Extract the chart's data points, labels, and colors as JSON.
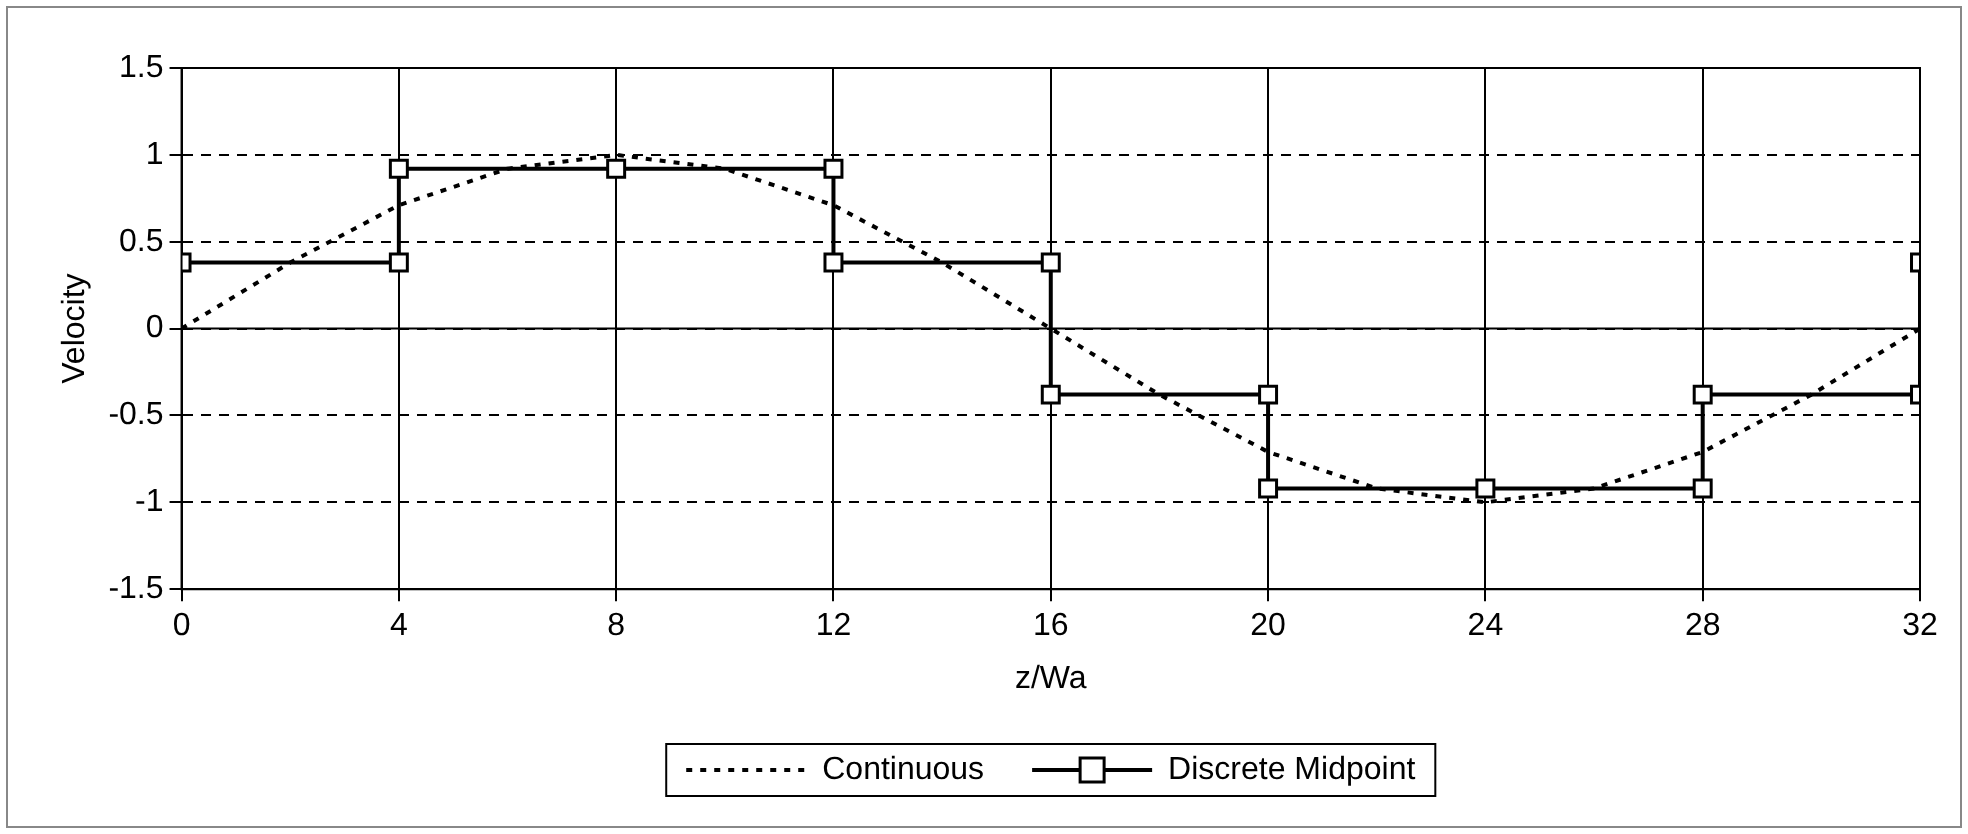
{
  "chart_data": {
    "type": "line",
    "xlabel": "z/Wa",
    "ylabel": "Velocity",
    "xlim": [
      0,
      32
    ],
    "xticks": [
      0,
      4,
      8,
      12,
      16,
      20,
      24,
      28,
      32
    ],
    "ylim": [
      -1.5,
      1.5
    ],
    "yticks": [
      -1.5,
      -1,
      -0.5,
      0,
      0.5,
      1,
      1.5
    ],
    "grid": true,
    "legend": "bottom",
    "series": [
      {
        "name": "Continuous",
        "color": "#000000",
        "marker": "none",
        "line_style": "dotted",
        "x": [
          0,
          2,
          4,
          6,
          8,
          10,
          12,
          14,
          16,
          18,
          20,
          22,
          24,
          26,
          28,
          30,
          32
        ],
        "values": [
          0,
          0.38,
          0.71,
          0.92,
          1,
          0.92,
          0.71,
          0.38,
          0,
          -0.38,
          -0.71,
          -0.92,
          -1,
          -0.92,
          -0.71,
          -0.38,
          0
        ]
      },
      {
        "name": "Discrete Midpoint",
        "color": "#000000",
        "marker": "square",
        "line_style": "solid",
        "x": [
          0,
          4,
          4,
          8,
          12,
          12,
          16,
          16,
          20,
          20,
          24,
          28,
          28,
          32,
          32
        ],
        "values": [
          0.38,
          0.38,
          0.92,
          0.92,
          0.92,
          0.38,
          0.38,
          -0.38,
          -0.38,
          -0.92,
          -0.92,
          -0.92,
          -0.38,
          -0.38,
          0.38
        ]
      }
    ]
  }
}
